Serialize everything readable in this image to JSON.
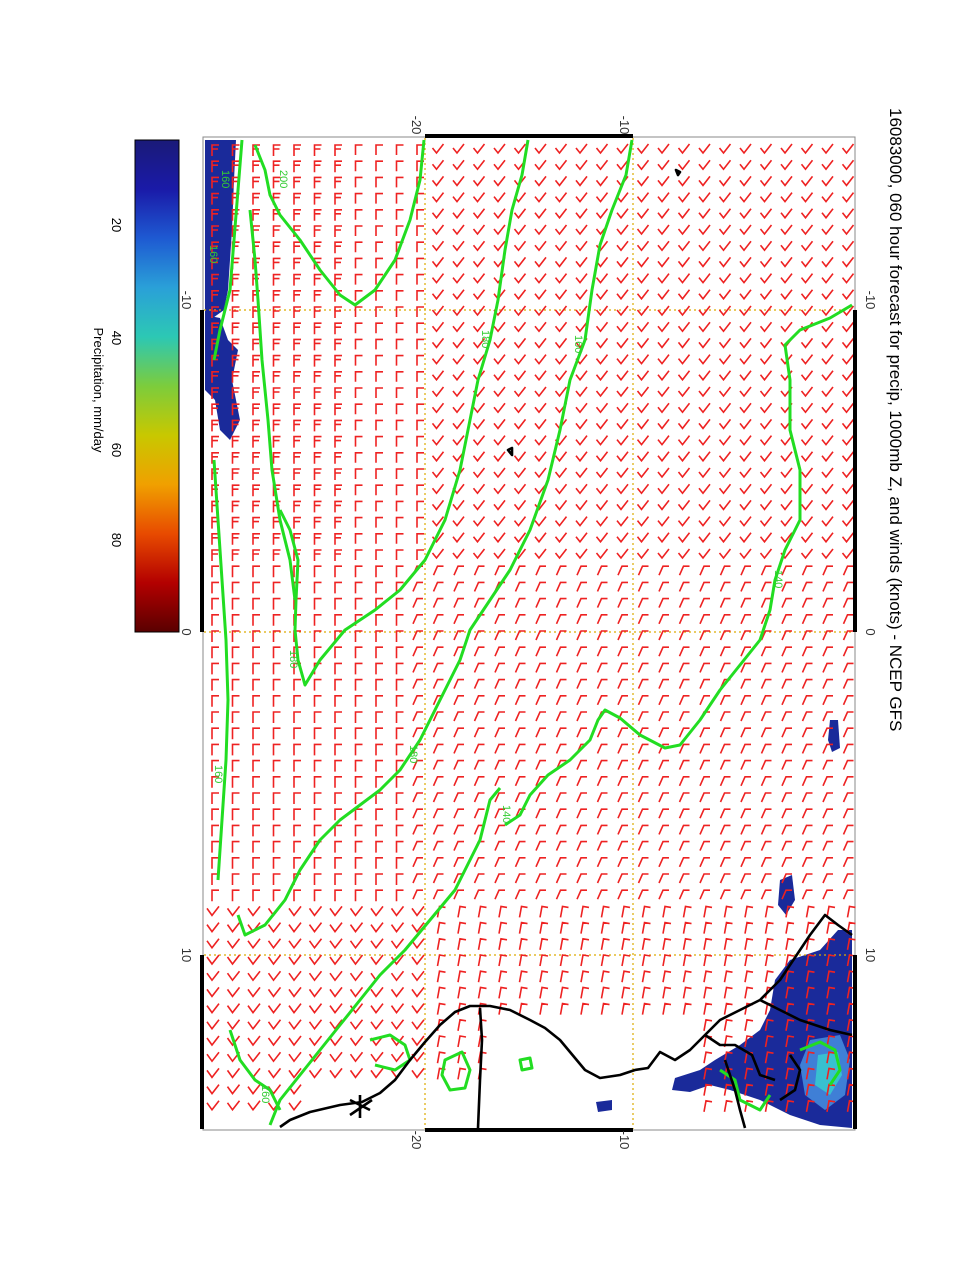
{
  "title": "16083000, 060 hour forecast for precip, 1000mb Z, and winds (knots) - NCEP GFS",
  "axes": {
    "left_ticks": [
      "-20",
      "-10"
    ],
    "right_ticks": [
      "-20",
      "-10"
    ],
    "top_ticks": [
      "-10",
      "0",
      "10"
    ],
    "bottom_ticks": [
      "-10",
      "0",
      "10"
    ]
  },
  "colorbar": {
    "label": "Precipitation, mm/day",
    "ticks": [
      "20",
      "40",
      "60",
      "80"
    ],
    "colors": [
      "#5a0000",
      "#b30000",
      "#e84b00",
      "#f0a000",
      "#c8c800",
      "#7ccc3c",
      "#2cc8b4",
      "#2aa0d8",
      "#1e5ad2",
      "#1a1aa8",
      "#1a1a78"
    ]
  },
  "contour_labels": [
    "140",
    "160",
    "180",
    "200",
    "160",
    "160",
    "180",
    "140",
    "160",
    "180",
    "160"
  ],
  "colors": {
    "barb": "#ee2222",
    "contour": "#22dd22",
    "coast": "#000000",
    "grid": "#ddaa00",
    "precip": "#1a2a9a"
  }
}
